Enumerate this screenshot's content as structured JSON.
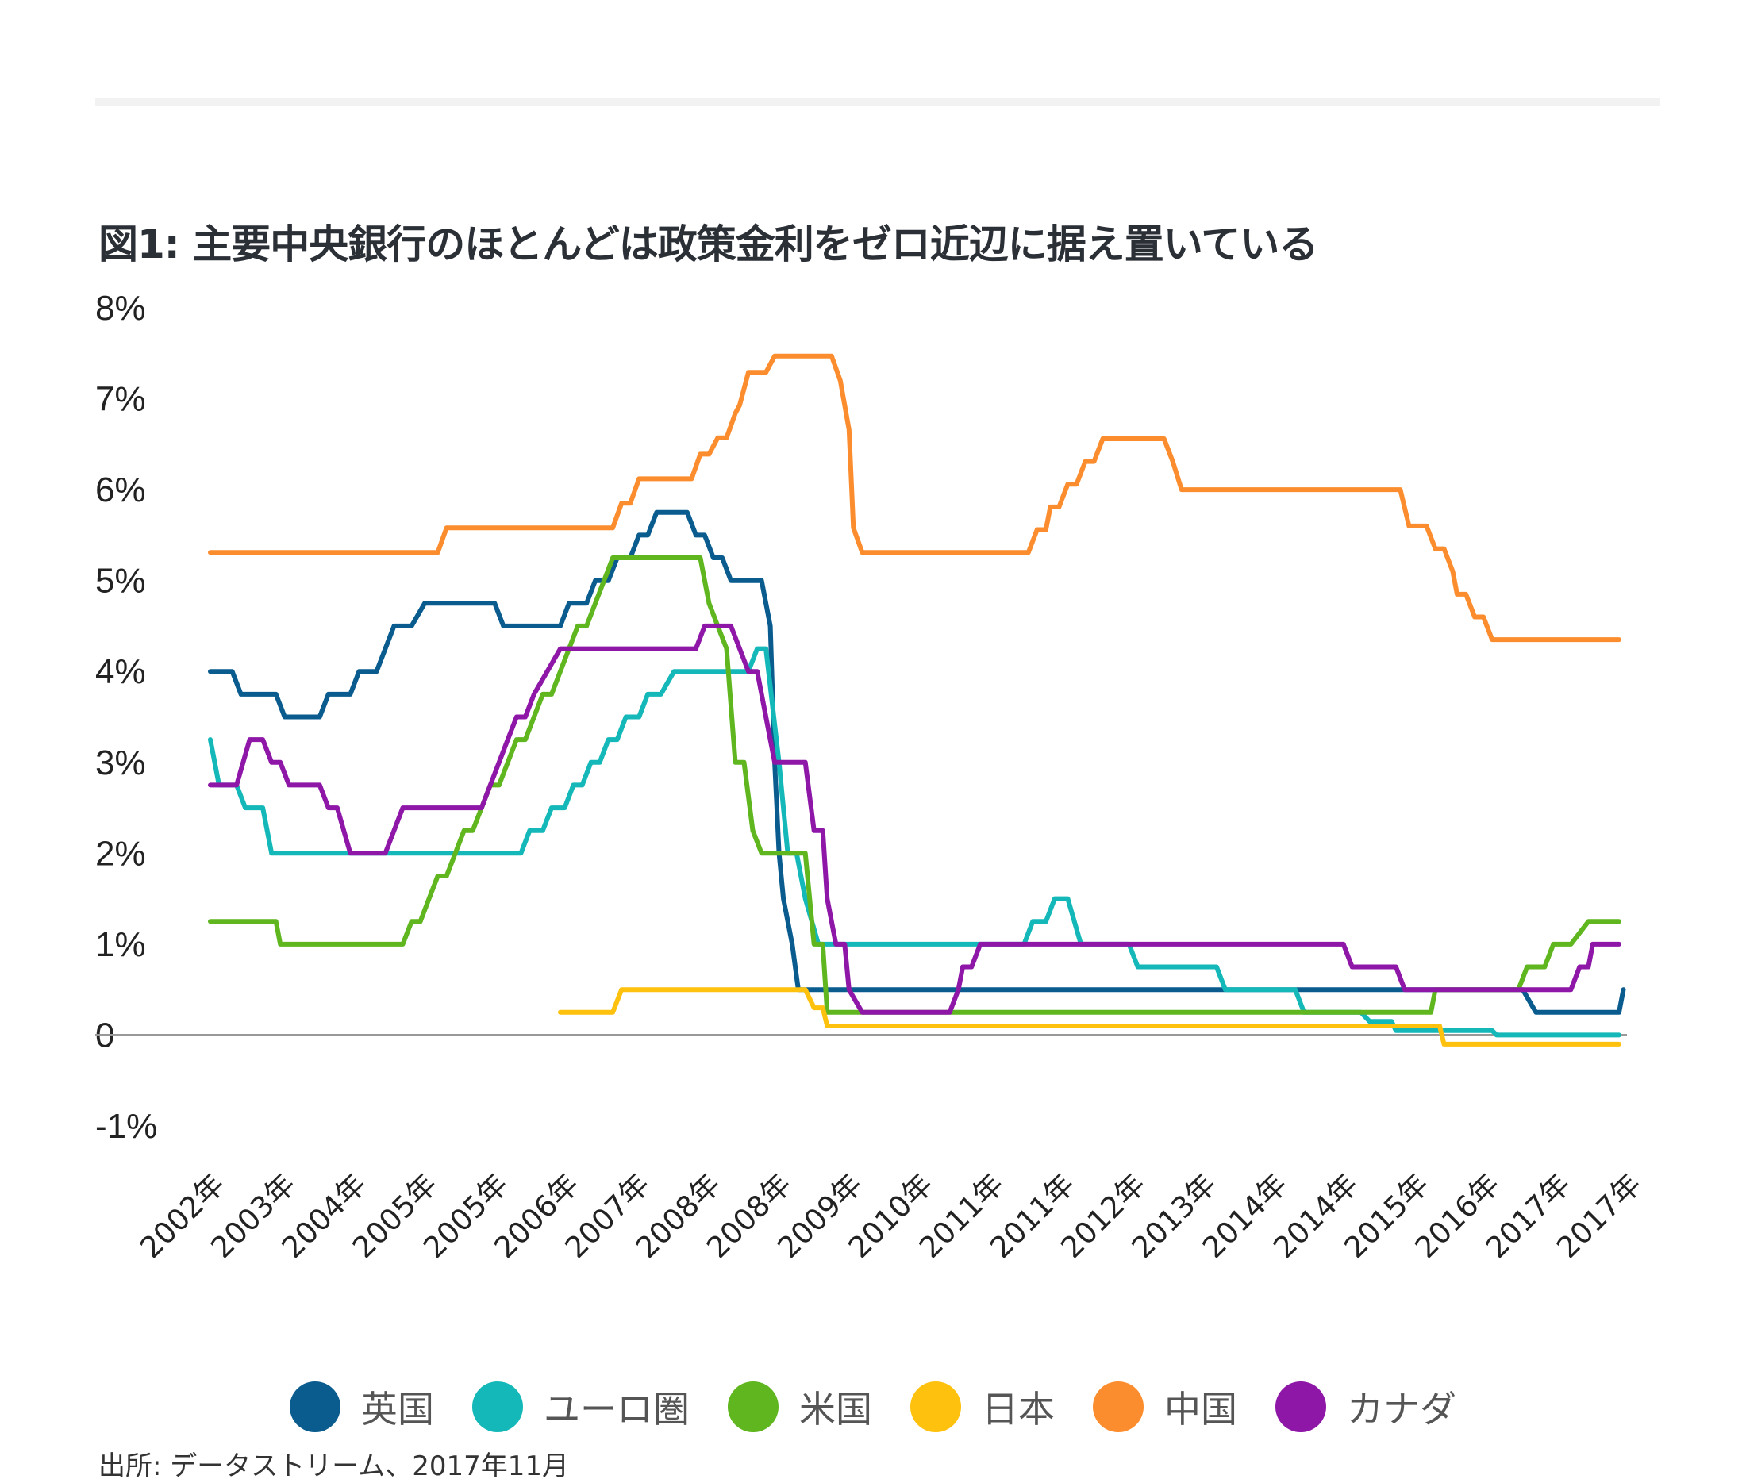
{
  "title": "図1: 主要中央銀行のほとんどは政策金利をゼロ近辺に据え置いている",
  "source": "出所: データストリーム、2017年11月",
  "chart_data": {
    "type": "line",
    "title": "図1: 主要中央銀行のほとんどは政策金利をゼロ近辺に据え置いている",
    "ylim": [
      -1,
      8
    ],
    "y_tick_values": [
      -1,
      0,
      1,
      2,
      3,
      4,
      5,
      6,
      7,
      8
    ],
    "y_tick_labels": [
      "-1%",
      "0",
      "1%",
      "2%",
      "3%",
      "4%",
      "5%",
      "6%",
      "7%",
      "8%"
    ],
    "x_tick_labels": [
      "2002年",
      "2003年",
      "2004年",
      "2005年",
      "2005年",
      "2006年",
      "2007年",
      "2008年",
      "2008年",
      "2009年",
      "2010年",
      "2011年",
      "2011年",
      "2012年",
      "2013年",
      "2014年",
      "2014年",
      "2015年",
      "2016年",
      "2017年",
      "2017年"
    ],
    "grid": false,
    "legend_position": "bottom",
    "series": [
      {
        "name": "英国",
        "color": "#0a5c8f",
        "points": [
          [
            2002.0,
            4.0
          ],
          [
            2002.25,
            4.0
          ],
          [
            2002.35,
            3.75
          ],
          [
            2002.75,
            3.75
          ],
          [
            2002.85,
            3.5
          ],
          [
            2003.25,
            3.5
          ],
          [
            2003.35,
            3.75
          ],
          [
            2003.6,
            3.75
          ],
          [
            2003.7,
            4.0
          ],
          [
            2003.9,
            4.0
          ],
          [
            2004.0,
            4.25
          ],
          [
            2004.1,
            4.5
          ],
          [
            2004.3,
            4.5
          ],
          [
            2004.45,
            4.75
          ],
          [
            2005.25,
            4.75
          ],
          [
            2005.35,
            4.5
          ],
          [
            2006.0,
            4.5
          ],
          [
            2006.1,
            4.75
          ],
          [
            2006.3,
            4.75
          ],
          [
            2006.4,
            5.0
          ],
          [
            2006.55,
            5.0
          ],
          [
            2006.65,
            5.25
          ],
          [
            2006.8,
            5.25
          ],
          [
            2006.9,
            5.5
          ],
          [
            2007.0,
            5.5
          ],
          [
            2007.1,
            5.75
          ],
          [
            2007.45,
            5.75
          ],
          [
            2007.55,
            5.5
          ],
          [
            2007.65,
            5.5
          ],
          [
            2007.75,
            5.25
          ],
          [
            2007.85,
            5.25
          ],
          [
            2007.95,
            5.0
          ],
          [
            2008.3,
            5.0
          ],
          [
            2008.4,
            4.5
          ],
          [
            2008.45,
            3.0
          ],
          [
            2008.5,
            2.0
          ],
          [
            2008.55,
            1.5
          ],
          [
            2008.65,
            1.0
          ],
          [
            2008.72,
            0.5
          ],
          [
            2017.0,
            0.5
          ],
          [
            2017.15,
            0.25
          ],
          [
            2018.1,
            0.25
          ],
          [
            2018.15,
            0.5
          ]
        ]
      },
      {
        "name": "ユーロ圏",
        "color": "#14b8b8",
        "points": [
          [
            2002.0,
            3.25
          ],
          [
            2002.1,
            2.75
          ],
          [
            2002.3,
            2.75
          ],
          [
            2002.4,
            2.5
          ],
          [
            2002.6,
            2.5
          ],
          [
            2002.7,
            2.0
          ],
          [
            2005.55,
            2.0
          ],
          [
            2005.65,
            2.25
          ],
          [
            2005.8,
            2.25
          ],
          [
            2005.9,
            2.5
          ],
          [
            2006.05,
            2.5
          ],
          [
            2006.15,
            2.75
          ],
          [
            2006.25,
            2.75
          ],
          [
            2006.35,
            3.0
          ],
          [
            2006.45,
            3.0
          ],
          [
            2006.55,
            3.25
          ],
          [
            2006.65,
            3.25
          ],
          [
            2006.75,
            3.5
          ],
          [
            2006.9,
            3.5
          ],
          [
            2007.0,
            3.75
          ],
          [
            2007.15,
            3.75
          ],
          [
            2007.3,
            4.0
          ],
          [
            2008.15,
            4.0
          ],
          [
            2008.25,
            4.25
          ],
          [
            2008.35,
            4.25
          ],
          [
            2008.5,
            3.0
          ],
          [
            2008.6,
            2.0
          ],
          [
            2008.7,
            2.0
          ],
          [
            2008.8,
            1.5
          ],
          [
            2008.95,
            1.0
          ],
          [
            2011.3,
            1.0
          ],
          [
            2011.4,
            1.25
          ],
          [
            2011.55,
            1.25
          ],
          [
            2011.65,
            1.5
          ],
          [
            2011.8,
            1.5
          ],
          [
            2011.95,
            1.0
          ],
          [
            2012.5,
            1.0
          ],
          [
            2012.6,
            0.75
          ],
          [
            2013.5,
            0.75
          ],
          [
            2013.6,
            0.5
          ],
          [
            2014.4,
            0.5
          ],
          [
            2014.5,
            0.25
          ],
          [
            2015.15,
            0.25
          ],
          [
            2015.25,
            0.15
          ],
          [
            2015.5,
            0.15
          ],
          [
            2015.55,
            0.05
          ],
          [
            2016.65,
            0.05
          ],
          [
            2016.7,
            0.0
          ],
          [
            2018.1,
            0.0
          ]
        ]
      },
      {
        "name": "米国",
        "color": "#5fb61e",
        "points": [
          [
            2002.0,
            1.25
          ],
          [
            2002.75,
            1.25
          ],
          [
            2002.8,
            1.0
          ],
          [
            2004.2,
            1.0
          ],
          [
            2004.3,
            1.25
          ],
          [
            2004.4,
            1.25
          ],
          [
            2004.5,
            1.5
          ],
          [
            2004.6,
            1.75
          ],
          [
            2004.7,
            1.75
          ],
          [
            2004.8,
            2.0
          ],
          [
            2004.9,
            2.25
          ],
          [
            2005.0,
            2.25
          ],
          [
            2005.1,
            2.5
          ],
          [
            2005.2,
            2.75
          ],
          [
            2005.3,
            2.75
          ],
          [
            2005.4,
            3.0
          ],
          [
            2005.5,
            3.25
          ],
          [
            2005.6,
            3.25
          ],
          [
            2005.7,
            3.5
          ],
          [
            2005.8,
            3.75
          ],
          [
            2005.9,
            3.75
          ],
          [
            2006.0,
            4.0
          ],
          [
            2006.1,
            4.25
          ],
          [
            2006.2,
            4.5
          ],
          [
            2006.3,
            4.5
          ],
          [
            2006.4,
            4.75
          ],
          [
            2006.5,
            5.0
          ],
          [
            2006.6,
            5.25
          ],
          [
            2007.6,
            5.25
          ],
          [
            2007.7,
            4.75
          ],
          [
            2007.8,
            4.5
          ],
          [
            2007.9,
            4.25
          ],
          [
            2008.0,
            3.0
          ],
          [
            2008.1,
            3.0
          ],
          [
            2008.2,
            2.25
          ],
          [
            2008.3,
            2.0
          ],
          [
            2008.8,
            2.0
          ],
          [
            2008.85,
            1.5
          ],
          [
            2008.9,
            1.0
          ],
          [
            2009.0,
            1.0
          ],
          [
            2009.05,
            0.25
          ],
          [
            2015.95,
            0.25
          ],
          [
            2016.0,
            0.5
          ],
          [
            2016.95,
            0.5
          ],
          [
            2017.05,
            0.75
          ],
          [
            2017.25,
            0.75
          ],
          [
            2017.35,
            1.0
          ],
          [
            2017.55,
            1.0
          ],
          [
            2017.75,
            1.25
          ],
          [
            2018.1,
            1.25
          ]
        ]
      },
      {
        "name": "日本",
        "color": "#fec10d",
        "points": [
          [
            2006.0,
            0.25
          ],
          [
            2006.6,
            0.25
          ],
          [
            2006.7,
            0.5
          ],
          [
            2008.8,
            0.5
          ],
          [
            2008.9,
            0.3
          ],
          [
            2009.0,
            0.3
          ],
          [
            2009.05,
            0.1
          ],
          [
            2016.05,
            0.1
          ],
          [
            2016.1,
            -0.1
          ],
          [
            2018.1,
            -0.1
          ]
        ]
      },
      {
        "name": "中国",
        "color": "#fc8d2f",
        "points": [
          [
            2002.0,
            5.31
          ],
          [
            2004.6,
            5.31
          ],
          [
            2004.7,
            5.58
          ],
          [
            2006.6,
            5.58
          ],
          [
            2006.7,
            5.85
          ],
          [
            2006.8,
            5.85
          ],
          [
            2006.9,
            6.12
          ],
          [
            2007.5,
            6.12
          ],
          [
            2007.6,
            6.39
          ],
          [
            2007.7,
            6.39
          ],
          [
            2007.8,
            6.57
          ],
          [
            2007.9,
            6.57
          ],
          [
            2008.0,
            6.84
          ],
          [
            2008.05,
            6.93
          ],
          [
            2008.15,
            7.29
          ],
          [
            2008.35,
            7.29
          ],
          [
            2008.45,
            7.47
          ],
          [
            2008.55,
            7.47
          ],
          [
            2008.65,
            7.47
          ],
          [
            2009.1,
            7.47
          ],
          [
            2009.2,
            7.2
          ],
          [
            2009.3,
            6.66
          ],
          [
            2009.35,
            5.58
          ],
          [
            2009.45,
            5.31
          ],
          [
            2011.35,
            5.31
          ],
          [
            2011.45,
            5.56
          ],
          [
            2011.55,
            5.56
          ],
          [
            2011.6,
            5.81
          ],
          [
            2011.7,
            5.81
          ],
          [
            2011.8,
            6.06
          ],
          [
            2011.9,
            6.06
          ],
          [
            2012.0,
            6.31
          ],
          [
            2012.1,
            6.31
          ],
          [
            2012.2,
            6.56
          ],
          [
            2012.9,
            6.56
          ],
          [
            2013.0,
            6.31
          ],
          [
            2013.1,
            6.0
          ],
          [
            2015.6,
            6.0
          ],
          [
            2015.7,
            5.6
          ],
          [
            2015.9,
            5.6
          ],
          [
            2016.0,
            5.35
          ],
          [
            2016.1,
            5.35
          ],
          [
            2016.2,
            5.1
          ],
          [
            2016.25,
            4.85
          ],
          [
            2016.35,
            4.85
          ],
          [
            2016.45,
            4.6
          ],
          [
            2016.55,
            4.6
          ],
          [
            2016.65,
            4.35
          ],
          [
            2018.1,
            4.35
          ]
        ]
      },
      {
        "name": "カナダ",
        "color": "#8e17a8",
        "points": [
          [
            2002.0,
            2.75
          ],
          [
            2002.3,
            2.75
          ],
          [
            2002.45,
            3.25
          ],
          [
            2002.6,
            3.25
          ],
          [
            2002.7,
            3.0
          ],
          [
            2002.8,
            3.0
          ],
          [
            2002.9,
            2.75
          ],
          [
            2003.25,
            2.75
          ],
          [
            2003.35,
            2.5
          ],
          [
            2003.45,
            2.5
          ],
          [
            2003.6,
            2.0
          ],
          [
            2004.0,
            2.0
          ],
          [
            2004.2,
            2.5
          ],
          [
            2005.1,
            2.5
          ],
          [
            2005.2,
            2.75
          ],
          [
            2005.3,
            3.0
          ],
          [
            2005.4,
            3.25
          ],
          [
            2005.5,
            3.5
          ],
          [
            2005.6,
            3.5
          ],
          [
            2005.7,
            3.75
          ],
          [
            2005.85,
            4.0
          ],
          [
            2006.0,
            4.25
          ],
          [
            2007.55,
            4.25
          ],
          [
            2007.65,
            4.5
          ],
          [
            2007.95,
            4.5
          ],
          [
            2008.05,
            4.25
          ],
          [
            2008.15,
            4.0
          ],
          [
            2008.25,
            4.0
          ],
          [
            2008.35,
            3.5
          ],
          [
            2008.45,
            3.0
          ],
          [
            2008.8,
            3.0
          ],
          [
            2008.9,
            2.25
          ],
          [
            2009.0,
            2.25
          ],
          [
            2009.05,
            1.5
          ],
          [
            2009.15,
            1.0
          ],
          [
            2009.25,
            1.0
          ],
          [
            2009.3,
            0.5
          ],
          [
            2009.45,
            0.25
          ],
          [
            2010.45,
            0.25
          ],
          [
            2010.55,
            0.5
          ],
          [
            2010.6,
            0.75
          ],
          [
            2010.7,
            0.75
          ],
          [
            2010.8,
            1.0
          ],
          [
            2014.95,
            1.0
          ],
          [
            2015.05,
            0.75
          ],
          [
            2015.55,
            0.75
          ],
          [
            2015.65,
            0.5
          ],
          [
            2017.55,
            0.5
          ],
          [
            2017.65,
            0.75
          ],
          [
            2017.75,
            0.75
          ],
          [
            2017.8,
            1.0
          ],
          [
            2018.1,
            1.0
          ]
        ]
      }
    ]
  }
}
